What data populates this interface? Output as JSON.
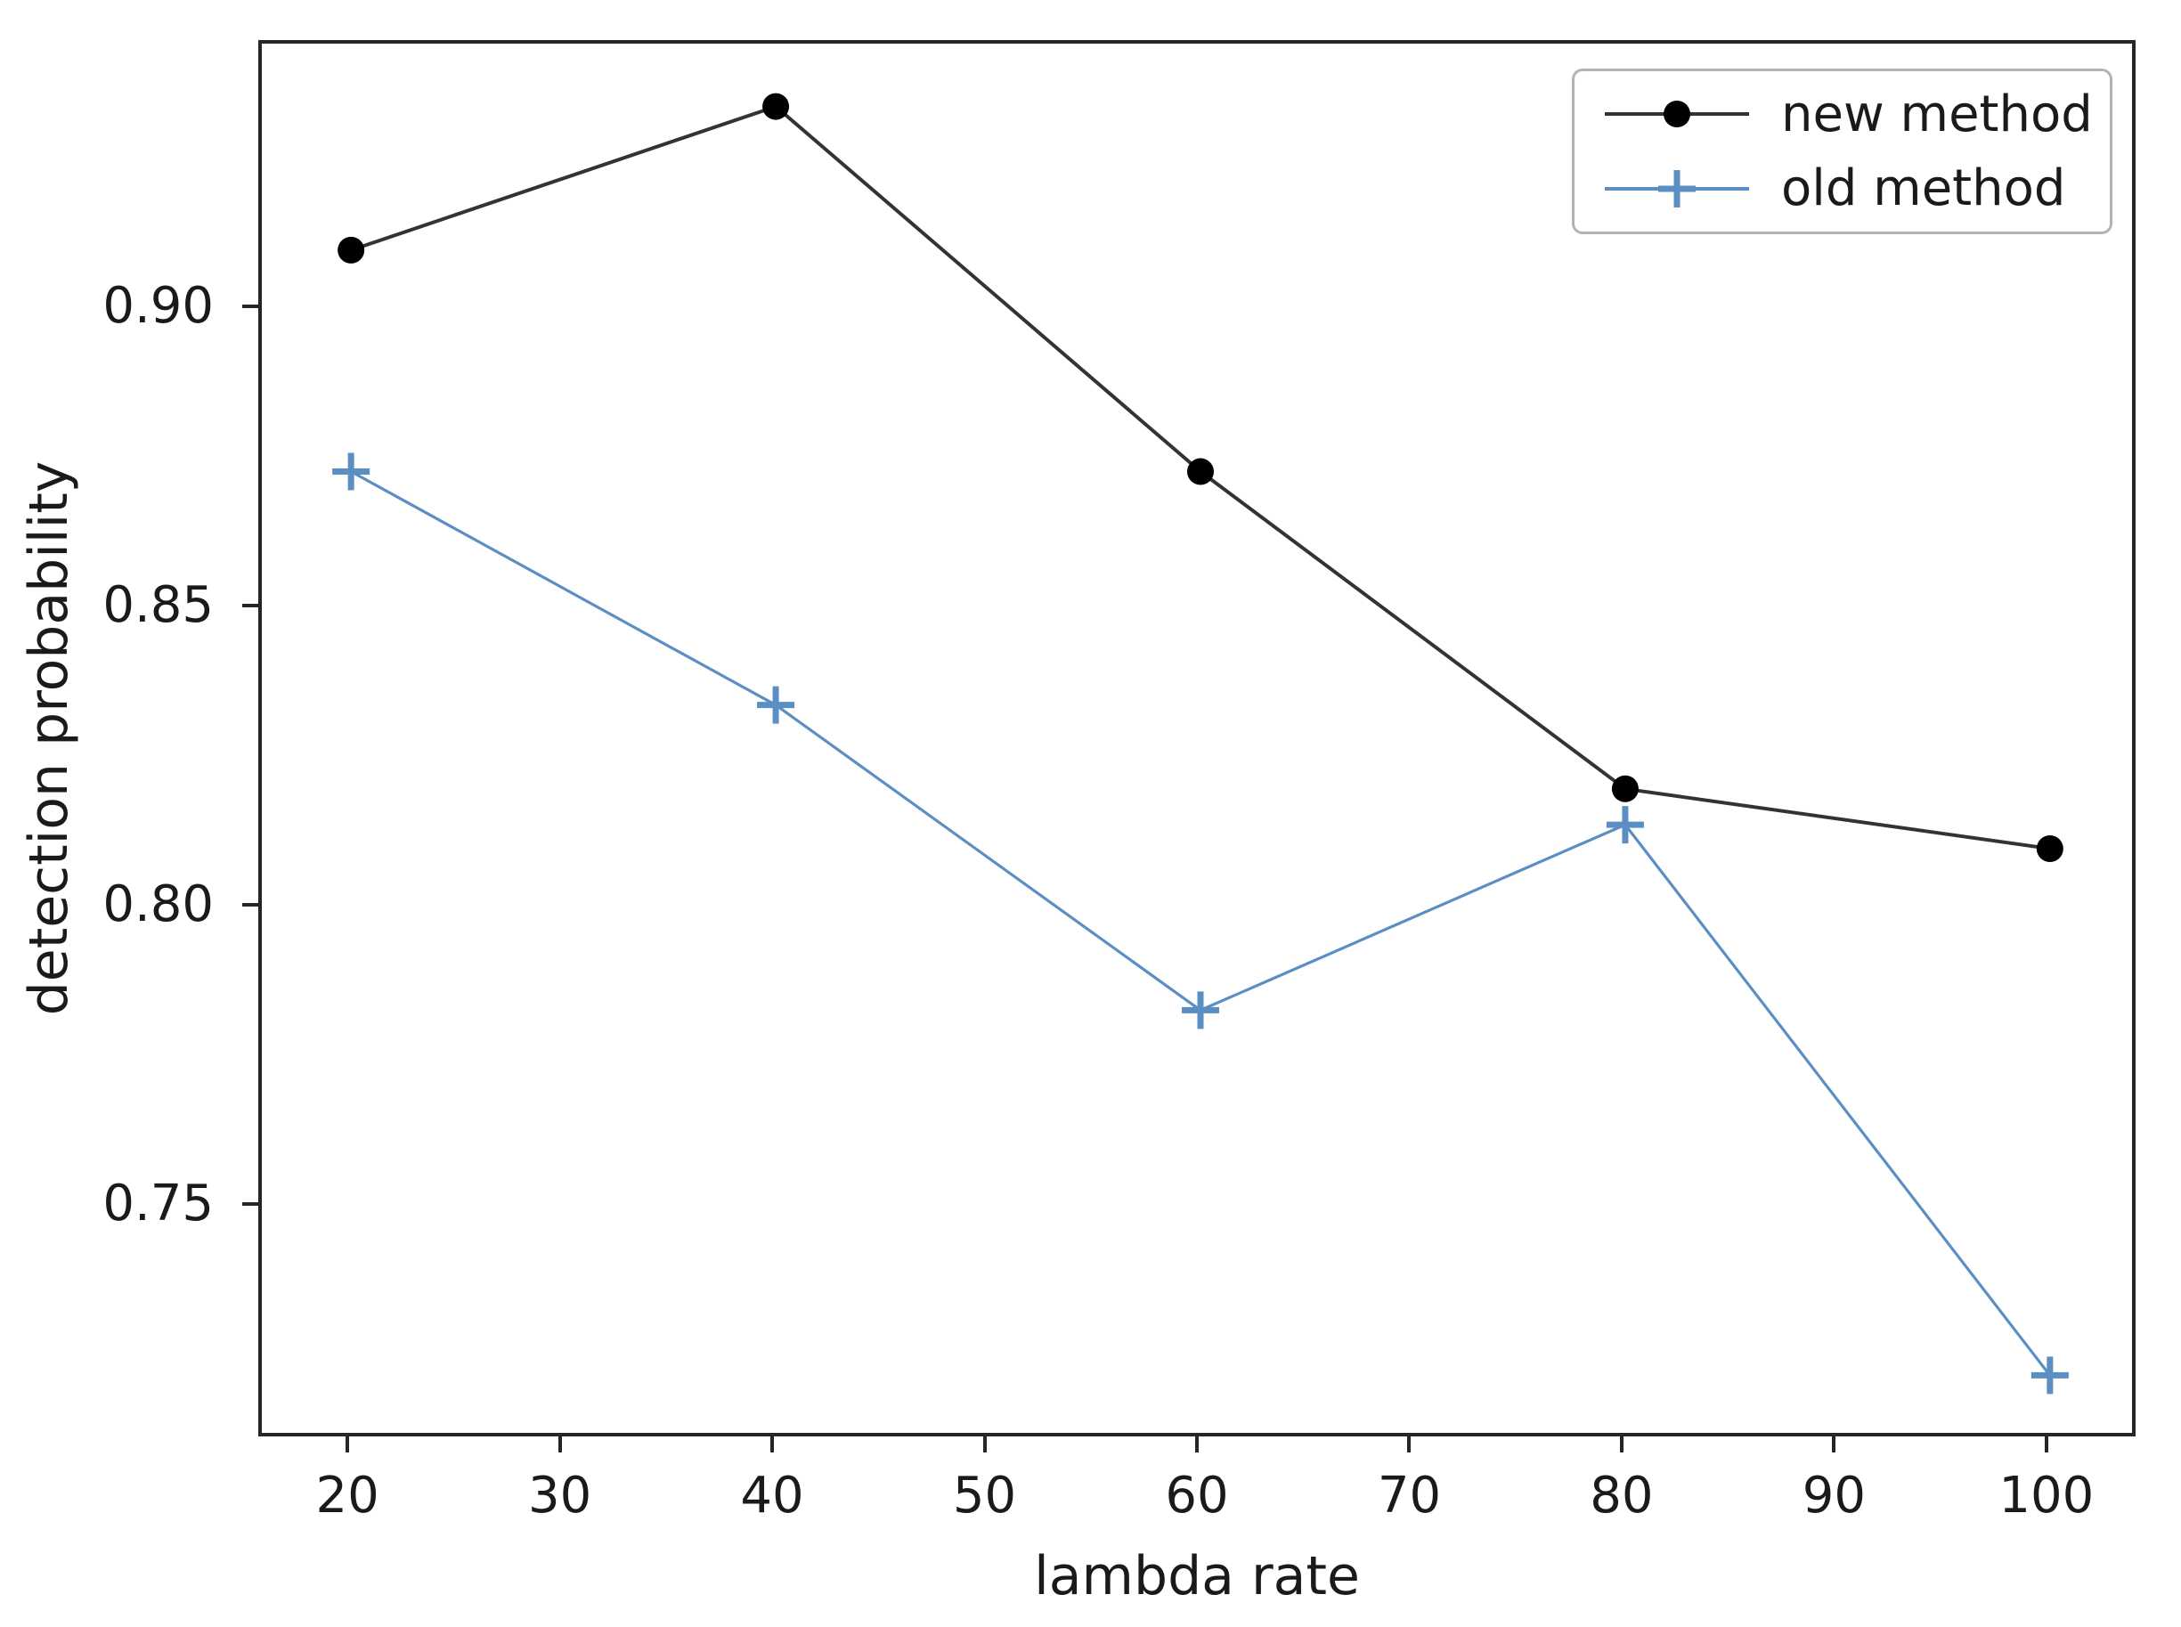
{
  "figure": {
    "background": "#ffffff",
    "axis_color": "#262626",
    "text_color": "#1a1a1a",
    "legend_border_color": "#b3b3b3"
  },
  "chart_data": {
    "type": "line",
    "title": "",
    "xlabel": "lambda rate",
    "ylabel": "detection probability",
    "x": [
      20,
      40,
      60,
      80,
      100
    ],
    "series": [
      {
        "name": "new method",
        "values": [
          0.91,
          0.934,
          0.873,
          0.82,
          0.81
        ],
        "line_color": "#333333",
        "marker": "circle",
        "marker_color": "#000000"
      },
      {
        "name": "old method",
        "values": [
          0.873,
          0.834,
          0.783,
          0.814,
          0.722
        ],
        "line_color": "#5b8fc4",
        "marker": "plus",
        "marker_color": "#5b8fc4"
      }
    ],
    "x_ticks": [
      20,
      30,
      40,
      50,
      60,
      70,
      80,
      90,
      100
    ],
    "y_ticks": [
      0.9,
      0.85,
      0.8,
      0.75
    ],
    "xlim": [
      15.8,
      104.2
    ],
    "ylim": [
      0.7112,
      0.9445
    ],
    "grid": false,
    "legend_position": "upper right"
  },
  "legend": {
    "items": [
      {
        "label": "new method"
      },
      {
        "label": "old method"
      }
    ]
  }
}
